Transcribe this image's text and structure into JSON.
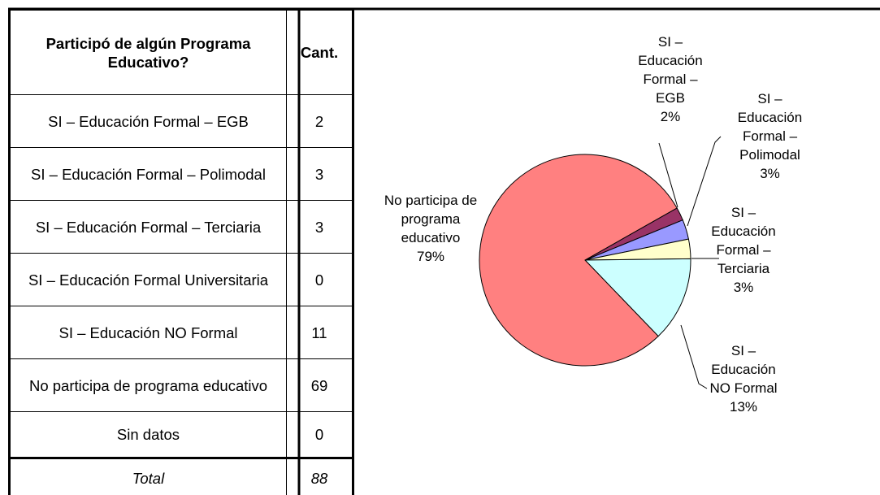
{
  "table": {
    "header": [
      "Participó de algún Programa Educativo?",
      "Cant."
    ],
    "rows": [
      [
        "SI – Educación Formal – EGB",
        2
      ],
      [
        "SI – Educación Formal – Polimodal",
        3
      ],
      [
        "SI – Educación Formal – Terciaria",
        3
      ],
      [
        "SI – Educación Formal Universitaria",
        0
      ],
      [
        "SI – Educación NO Formal",
        11
      ],
      [
        "No participa de programa educativo",
        69
      ],
      [
        "Sin datos",
        0
      ]
    ],
    "total": [
      "Total",
      88
    ]
  },
  "chart_data": {
    "type": "pie",
    "categories": [
      "SI – Educación Formal – EGB",
      "SI – Educación Formal – Polimodal",
      "SI – Educación Formal – Terciaria",
      "SI – Educación NO Formal",
      "No participa de programa educativo"
    ],
    "values": [
      2,
      3,
      3,
      13,
      79
    ],
    "value_labels": [
      "2%",
      "3%",
      "3%",
      "13%",
      "79%"
    ],
    "colors": [
      "#993366",
      "#9999ff",
      "#ffffcc",
      "#ccffff",
      "#ff8080"
    ]
  }
}
